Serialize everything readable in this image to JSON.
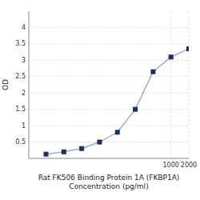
{
  "chart_data": {
    "type": "line",
    "x_label": "Rat FK506 Binding Protein 1A (FKBP1A)\nConcentration (pg/ml)",
    "y_label": "OD",
    "x": [
      7.8,
      15.6,
      31.2,
      62.5,
      125,
      250,
      500,
      1000,
      2000
    ],
    "values": [
      0.13,
      0.2,
      0.3,
      0.5,
      0.8,
      1.5,
      2.65,
      3.1,
      3.35
    ],
    "color": "#1a3060",
    "marker": "square",
    "log": "x",
    "xlim": [
      4,
      2000
    ],
    "ylim": [
      0,
      4.5
    ],
    "xticks": [
      1000,
      2000
    ],
    "yticks": [
      0.5,
      1,
      1.5,
      2,
      2.5,
      3,
      3.5,
      4
    ],
    "grid": true
  }
}
